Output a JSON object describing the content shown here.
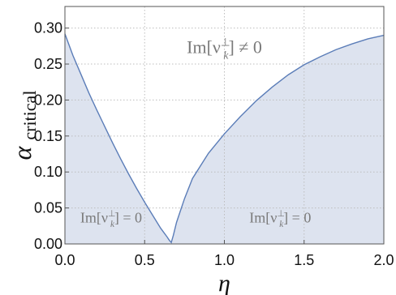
{
  "chart_data": {
    "type": "area",
    "title": "",
    "xlabel": "η",
    "ylabel": {
      "symbol": "α",
      "subscript": "critical"
    },
    "xlim": [
      0.0,
      2.0
    ],
    "ylim": [
      0.0,
      0.33
    ],
    "x_ticks": [
      "0.0",
      "0.5",
      "1.0",
      "1.5",
      "2.0"
    ],
    "y_ticks": [
      "0.00",
      "0.05",
      "0.10",
      "0.15",
      "0.20",
      "0.25",
      "0.30"
    ],
    "grid": true,
    "series": [
      {
        "x": [
          0.0,
          0.05,
          0.1,
          0.15,
          0.2,
          0.25,
          0.3,
          0.35,
          0.4,
          0.45,
          0.5,
          0.55,
          0.6,
          0.62,
          0.64,
          0.655,
          0.667,
          0.68,
          0.7,
          0.75,
          0.8,
          0.9,
          1.0,
          1.1,
          1.2,
          1.3,
          1.4,
          1.5,
          1.6,
          1.7,
          1.8,
          1.9,
          2.0
        ],
        "values": [
          0.292,
          0.262,
          0.236,
          0.21,
          0.186,
          0.163,
          0.14,
          0.118,
          0.097,
          0.077,
          0.058,
          0.04,
          0.022,
          0.016,
          0.01,
          0.005,
          0.002,
          0.012,
          0.03,
          0.063,
          0.091,
          0.126,
          0.153,
          0.177,
          0.199,
          0.218,
          0.235,
          0.249,
          0.26,
          0.27,
          0.278,
          0.285,
          0.29
        ],
        "fill": "#dde3ef",
        "line_color": "#5b7db8"
      }
    ],
    "annotations": [
      {
        "text": "Im[ν⊥k] ≠ 0",
        "x": 1.0,
        "y": 0.265,
        "size": "large"
      },
      {
        "text": "Im[ν⊥k] = 0",
        "x": 0.29,
        "y": 0.03,
        "size": "small"
      },
      {
        "text": "Im[ν⊥k] = 0",
        "x": 1.35,
        "y": 0.03,
        "size": "small"
      }
    ]
  }
}
